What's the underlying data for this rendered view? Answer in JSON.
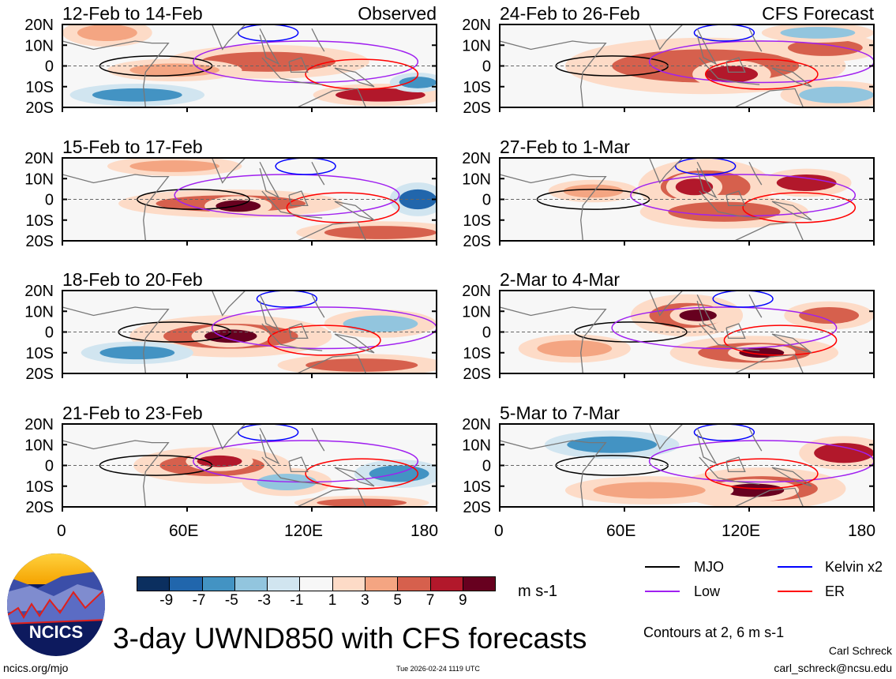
{
  "panels": [
    {
      "title": "12-Feb to 14-Feb",
      "tag": "Observed"
    },
    {
      "title": "24-Feb to 26-Feb",
      "tag": "CFS Forecast"
    },
    {
      "title": "15-Feb to 17-Feb",
      "tag": ""
    },
    {
      "title": "27-Feb to 1-Mar",
      "tag": ""
    },
    {
      "title": "18-Feb to 20-Feb",
      "tag": ""
    },
    {
      "title": "2-Mar to 4-Mar",
      "tag": ""
    },
    {
      "title": "21-Feb to 23-Feb",
      "tag": ""
    },
    {
      "title": "5-Mar to 7-Mar",
      "tag": ""
    }
  ],
  "lat_labels": [
    "20N",
    "10N",
    "0",
    "10S",
    "20S"
  ],
  "lon_labels": [
    "0",
    "60E",
    "120E",
    "180"
  ],
  "colorbar": {
    "ticks": [
      "-9",
      "-7",
      "-5",
      "-3",
      "-1",
      "1",
      "3",
      "5",
      "7",
      "9"
    ],
    "colors": [
      "#0b2f5f",
      "#2166ac",
      "#4393c3",
      "#92c5de",
      "#d1e5f0",
      "#f7f7f7",
      "#fddbc7",
      "#f4a582",
      "#d6604d",
      "#b2182b",
      "#67001f"
    ],
    "units": "m s-1"
  },
  "legend": [
    {
      "label": "MJO",
      "color": "#000000"
    },
    {
      "label": "Kelvin x2",
      "color": "#0000ff"
    },
    {
      "label": "Low",
      "color": "#a020f0"
    },
    {
      "label": "ER",
      "color": "#ff0000"
    }
  ],
  "contours_note": "Contours at 2, 6 m s-1",
  "main_title": "3-day UWND850 with CFS forecasts",
  "logo_text": "NCICS",
  "footer": {
    "url": "ncics.org/mjo",
    "timestamp": "Tue 2026-02-24 1119 UTC",
    "author": "Carl Schreck",
    "email": "carl_schreck@ncsu.edu"
  }
}
